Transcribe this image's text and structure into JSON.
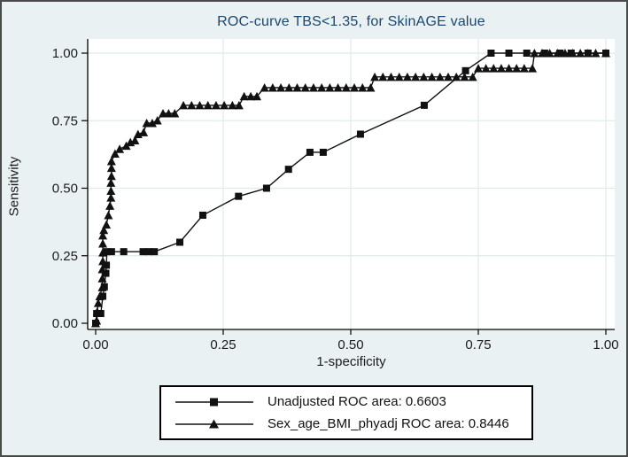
{
  "colors": {
    "figure_background": "#eaf1f3",
    "plot_background": "#ffffff",
    "grid": "#dfeaec",
    "axis": "#000000",
    "curve": "#111111",
    "title": "#1a476f",
    "text": "#1c1c1c",
    "frame_border": "#4a4a4a",
    "legend_border": "#000000"
  },
  "chart_data": {
    "type": "line",
    "title": "ROC-curve TBS<1.35, for SkinAGE value",
    "xlabel": "1-specificity",
    "ylabel": "Sensitivity",
    "xlim": [
      0,
      1
    ],
    "ylim": [
      0,
      1
    ],
    "grid": true,
    "legend_position": "bottom-center",
    "x_ticks": [
      0,
      0.25,
      0.5,
      0.75,
      1.0
    ],
    "y_ticks": [
      0,
      0.25,
      0.5,
      0.75,
      1.0
    ],
    "x_tick_labels": [
      "0.00",
      "0.25",
      "0.50",
      "0.75",
      "1.00"
    ],
    "y_tick_labels": [
      "0.00",
      "0.25",
      "0.50",
      "0.75",
      "1.00"
    ],
    "series": [
      {
        "name": "Unadjusted",
        "label": "Unadjusted ROC area: 0.6603",
        "marker": "square",
        "auc": 0.6603,
        "points": [
          [
            0,
            0
          ],
          [
            0.002,
            0.036
          ],
          [
            0.01,
            0.036
          ],
          [
            0.014,
            0.1
          ],
          [
            0.017,
            0.135
          ],
          [
            0.02,
            0.185
          ],
          [
            0.021,
            0.215
          ],
          [
            0.022,
            0.265
          ],
          [
            0.031,
            0.265
          ],
          [
            0.055,
            0.265
          ],
          [
            0.093,
            0.265
          ],
          [
            0.104,
            0.265
          ],
          [
            0.115,
            0.265
          ],
          [
            0.165,
            0.3
          ],
          [
            0.21,
            0.4
          ],
          [
            0.28,
            0.47
          ],
          [
            0.335,
            0.5
          ],
          [
            0.378,
            0.57
          ],
          [
            0.42,
            0.633
          ],
          [
            0.446,
            0.633
          ],
          [
            0.519,
            0.7
          ],
          [
            0.644,
            0.807
          ],
          [
            0.725,
            0.935
          ],
          [
            0.775,
            1.0
          ],
          [
            0.81,
            1.0
          ],
          [
            0.845,
            1.0
          ],
          [
            0.88,
            1.0
          ],
          [
            0.91,
            1.0
          ],
          [
            0.932,
            1.0
          ],
          [
            0.965,
            1.0
          ],
          [
            1.0,
            1.0
          ]
        ]
      },
      {
        "name": "Sex_age_BMI_phyadj",
        "label": "Sex_age_BMI_phyadj ROC area: 0.8446",
        "marker": "triangle",
        "auc": 0.8446,
        "points": [
          [
            0,
            0
          ],
          [
            0.002,
            0.01
          ],
          [
            0.003,
            0.043
          ],
          [
            0.005,
            0.075
          ],
          [
            0.008,
            0.1
          ],
          [
            0.013,
            0.133
          ],
          [
            0.013,
            0.166
          ],
          [
            0.013,
            0.2
          ],
          [
            0.014,
            0.23
          ],
          [
            0.014,
            0.262
          ],
          [
            0.014,
            0.295
          ],
          [
            0.014,
            0.325
          ],
          [
            0.016,
            0.345
          ],
          [
            0.021,
            0.365
          ],
          [
            0.025,
            0.4
          ],
          [
            0.028,
            0.435
          ],
          [
            0.03,
            0.465
          ],
          [
            0.03,
            0.49
          ],
          [
            0.03,
            0.52
          ],
          [
            0.031,
            0.545
          ],
          [
            0.031,
            0.575
          ],
          [
            0.031,
            0.6
          ],
          [
            0.038,
            0.628
          ],
          [
            0.047,
            0.645
          ],
          [
            0.06,
            0.657
          ],
          [
            0.068,
            0.67
          ],
          [
            0.077,
            0.677
          ],
          [
            0.083,
            0.7
          ],
          [
            0.094,
            0.707
          ],
          [
            0.1,
            0.741
          ],
          [
            0.111,
            0.741
          ],
          [
            0.121,
            0.751
          ],
          [
            0.132,
            0.777
          ],
          [
            0.143,
            0.777
          ],
          [
            0.155,
            0.777
          ],
          [
            0.172,
            0.807
          ],
          [
            0.188,
            0.807
          ],
          [
            0.204,
            0.807
          ],
          [
            0.22,
            0.807
          ],
          [
            0.236,
            0.807
          ],
          [
            0.252,
            0.807
          ],
          [
            0.268,
            0.807
          ],
          [
            0.281,
            0.807
          ],
          [
            0.291,
            0.84
          ],
          [
            0.304,
            0.84
          ],
          [
            0.316,
            0.84
          ],
          [
            0.331,
            0.872
          ],
          [
            0.347,
            0.872
          ],
          [
            0.363,
            0.872
          ],
          [
            0.379,
            0.872
          ],
          [
            0.395,
            0.872
          ],
          [
            0.411,
            0.872
          ],
          [
            0.427,
            0.872
          ],
          [
            0.443,
            0.872
          ],
          [
            0.459,
            0.872
          ],
          [
            0.475,
            0.872
          ],
          [
            0.491,
            0.872
          ],
          [
            0.507,
            0.872
          ],
          [
            0.523,
            0.872
          ],
          [
            0.539,
            0.872
          ],
          [
            0.547,
            0.912
          ],
          [
            0.563,
            0.912
          ],
          [
            0.579,
            0.912
          ],
          [
            0.595,
            0.912
          ],
          [
            0.611,
            0.912
          ],
          [
            0.627,
            0.912
          ],
          [
            0.643,
            0.912
          ],
          [
            0.659,
            0.912
          ],
          [
            0.675,
            0.912
          ],
          [
            0.691,
            0.912
          ],
          [
            0.707,
            0.912
          ],
          [
            0.723,
            0.912
          ],
          [
            0.739,
            0.912
          ],
          [
            0.75,
            0.944
          ],
          [
            0.765,
            0.944
          ],
          [
            0.78,
            0.944
          ],
          [
            0.795,
            0.944
          ],
          [
            0.81,
            0.944
          ],
          [
            0.825,
            0.944
          ],
          [
            0.84,
            0.944
          ],
          [
            0.856,
            0.944
          ],
          [
            0.86,
            1.0
          ],
          [
            0.875,
            1.0
          ],
          [
            0.89,
            1.0
          ],
          [
            0.905,
            1.0
          ],
          [
            0.92,
            1.0
          ],
          [
            0.935,
            1.0
          ],
          [
            0.95,
            1.0
          ],
          [
            0.965,
            1.0
          ],
          [
            0.98,
            1.0
          ],
          [
            1.0,
            1.0
          ]
        ]
      }
    ]
  }
}
